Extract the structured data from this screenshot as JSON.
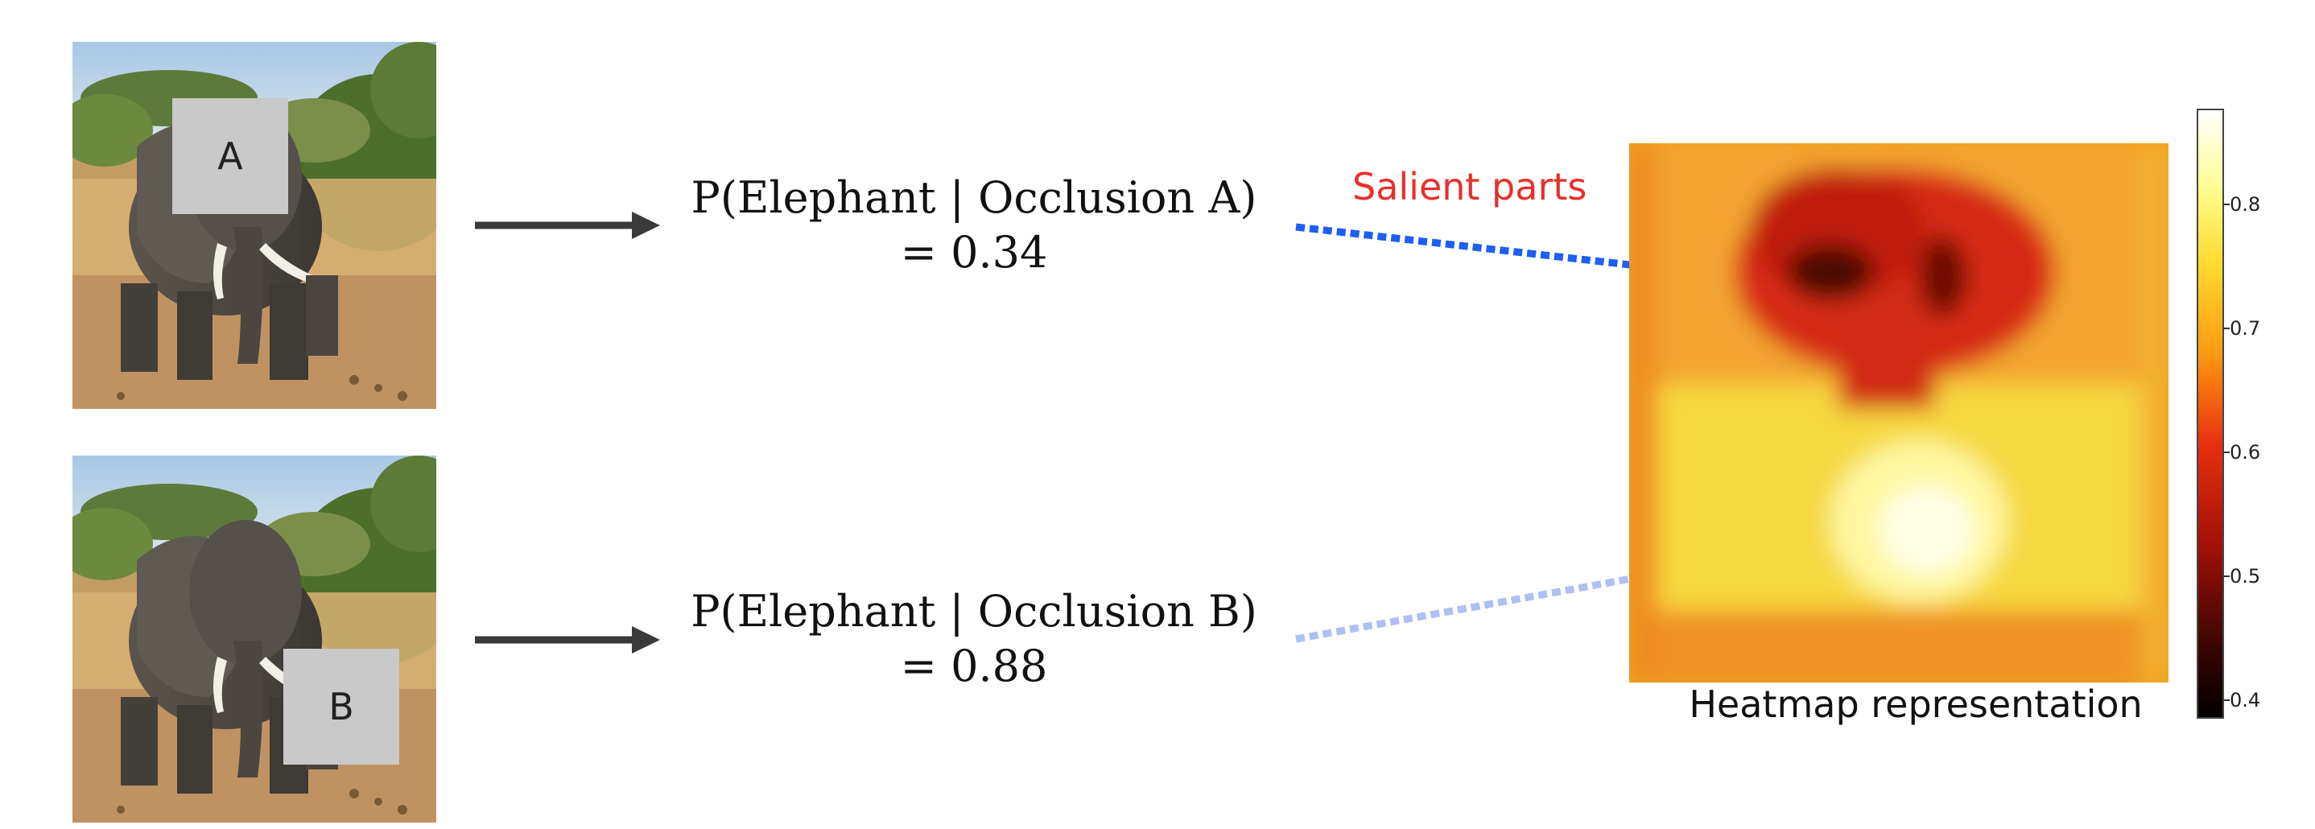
{
  "rows": [
    {
      "occlusion_label": "A",
      "prob_line1": "P(Elephant | Occlusion A)",
      "prob_line2": "=  0.34"
    },
    {
      "occlusion_label": "B",
      "prob_line1": "P(Elephant | Occlusion B)",
      "prob_line2": "=  0.88"
    }
  ],
  "salient_label": "Salient parts",
  "heatmap_caption": "Heatmap representation",
  "colorbar_ticks": [
    "0.8",
    "0.7",
    "0.6",
    "0.5",
    "0.4"
  ],
  "colors": {
    "salient_text": "#e8302c",
    "arrow_dark": "#3a3a3a",
    "arrow_blue": "#1e5ef5",
    "arrow_light_blue": "#aebff2",
    "occlusion_box": "#c9c9c9"
  },
  "icons": [
    "elephant-photo",
    "right-arrow-icon",
    "dotted-arrow-icon",
    "heatmap",
    "colorbar"
  ]
}
